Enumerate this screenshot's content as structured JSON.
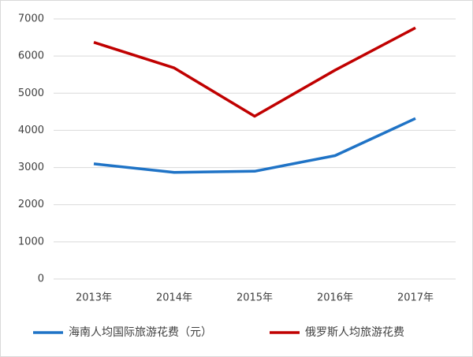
{
  "chart_data": {
    "type": "line",
    "categories": [
      "2013年",
      "2014年",
      "2015年",
      "2016年",
      "2017年"
    ],
    "series": [
      {
        "name": "海南人均国际旅游花费（元）",
        "color": "#1f73c6",
        "values": [
          3100,
          2870,
          2900,
          3320,
          4320
        ]
      },
      {
        "name": "俄罗斯人均旅游花费",
        "color": "#c00000",
        "values": [
          6370,
          5680,
          4380,
          5620,
          6760
        ]
      }
    ],
    "ylim": [
      0,
      7000
    ],
    "yticks": [
      0,
      1000,
      2000,
      3000,
      4000,
      5000,
      6000,
      7000
    ],
    "grid": true,
    "legend": "bottom"
  }
}
